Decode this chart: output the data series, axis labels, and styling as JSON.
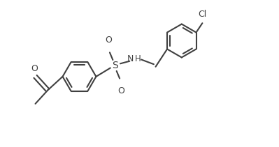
{
  "bg_color": "#ffffff",
  "line_color": "#404040",
  "line_width": 1.5,
  "fig_width": 3.99,
  "fig_height": 2.11,
  "dpi": 100,
  "xlim": [
    -0.5,
    4.0
  ],
  "ylim": [
    -0.3,
    2.0
  ]
}
